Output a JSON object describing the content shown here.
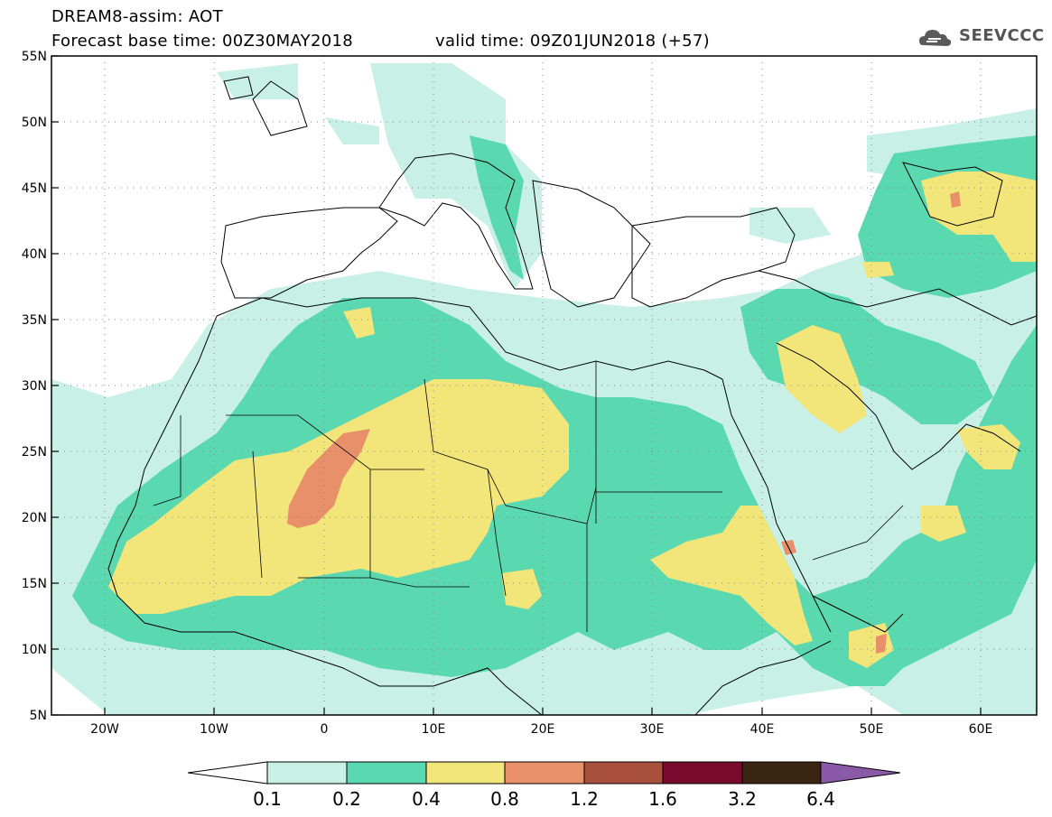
{
  "header": {
    "title": "DREAM8-assim: AOT",
    "base_time": "Forecast base time: 00Z30MAY2018",
    "valid_time": "valid time: 09Z01JUN2018 (+57)",
    "logo_text": "SEEVCCC"
  },
  "map": {
    "region": "North Africa, Mediterranean, Middle East",
    "lon_range": [
      -25,
      65
    ],
    "lat_range": [
      5,
      55
    ],
    "lat_labels": [
      "55N",
      "50N",
      "45N",
      "40N",
      "35N",
      "30N",
      "25N",
      "20N",
      "15N",
      "10N",
      "5N"
    ],
    "lon_labels": [
      "20W",
      "10W",
      "0",
      "10E",
      "20E",
      "30E",
      "40E",
      "50E",
      "60E"
    ],
    "variable": "AOT"
  },
  "colorbar": {
    "levels": [
      "0.1",
      "0.2",
      "0.4",
      "0.8",
      "1.2",
      "1.6",
      "3.2",
      "6.4"
    ],
    "colors": [
      "#ffffff",
      "#c8f0e6",
      "#5ad8b0",
      "#f2e67a",
      "#e8906a",
      "#a8503c",
      "#7a0a2e",
      "#3a2412",
      "#8a5aa8"
    ]
  }
}
